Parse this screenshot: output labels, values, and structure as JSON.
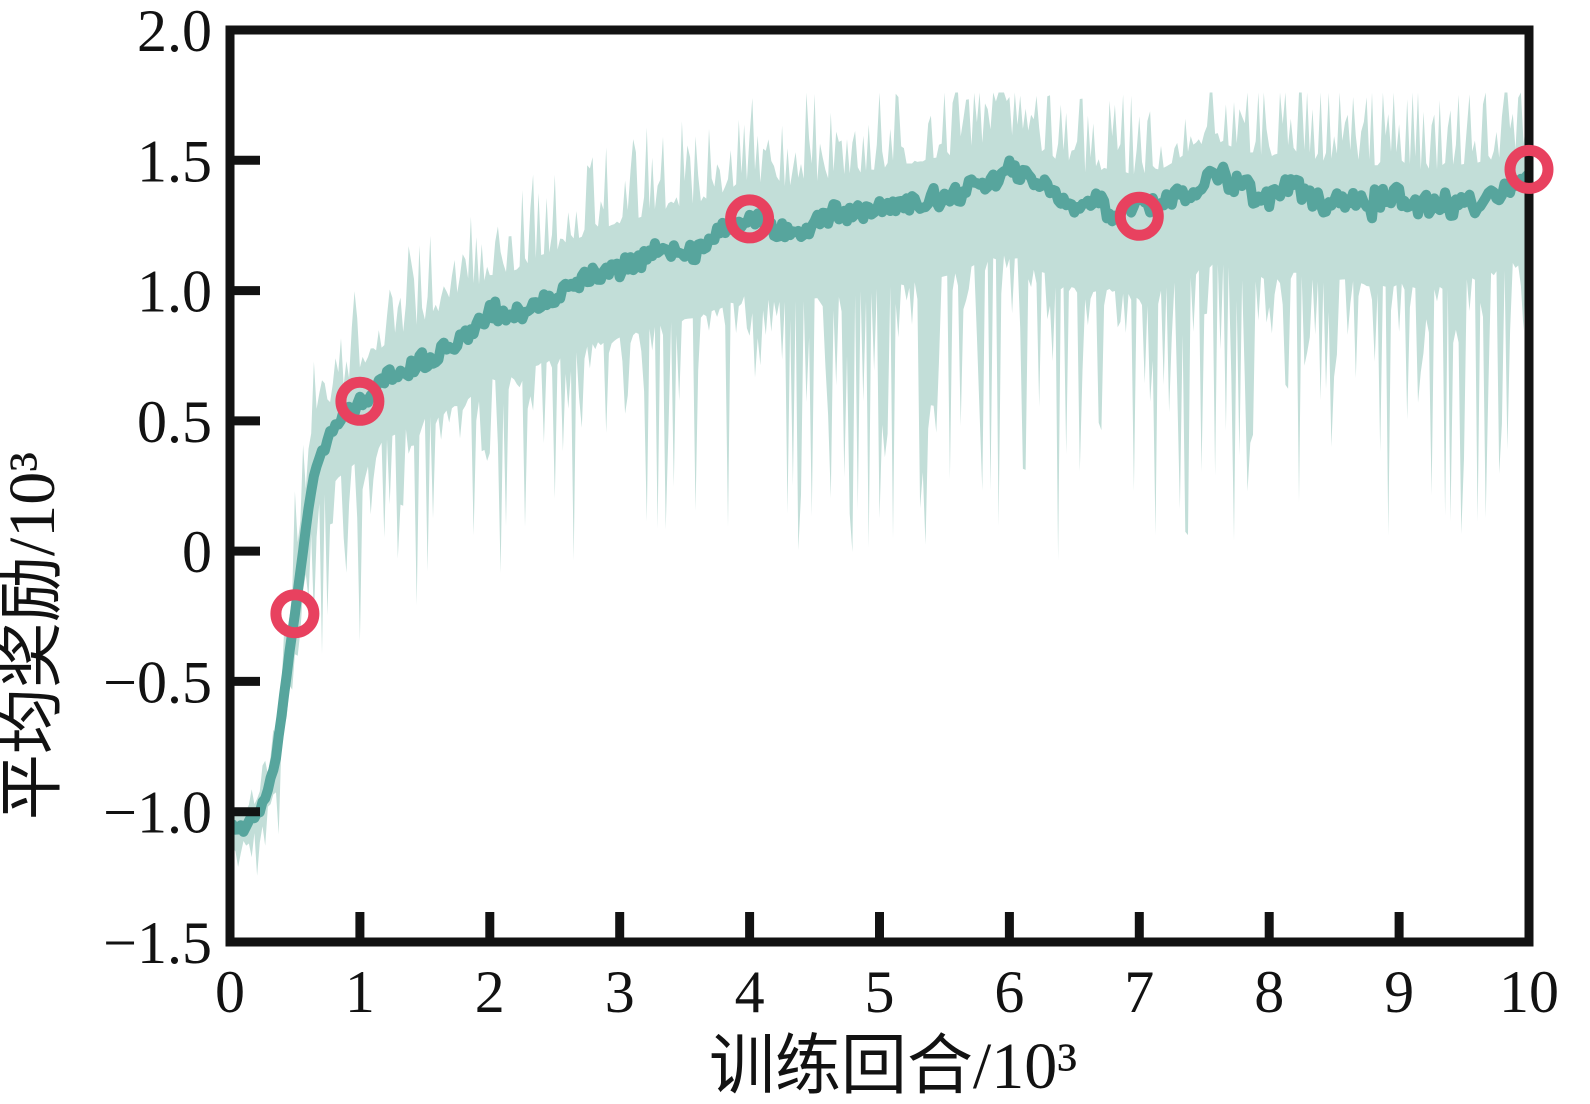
{
  "page": {
    "background": "#ffffff",
    "description_labels": {
      "x_axis": "训练回合/10³",
      "y_axis": "平均奖励/10³"
    }
  },
  "chart_data": {
    "type": "line",
    "title": "",
    "xlabel": "训练回合/10³",
    "ylabel": "平均奖励/10³",
    "xlim": [
      0,
      10
    ],
    "ylim": [
      -1.5,
      2.0
    ],
    "grid": false,
    "legend": "none",
    "axis_color": "#121212",
    "x_ticks": [
      {
        "value": 0,
        "label": "0"
      },
      {
        "value": 1,
        "label": "1"
      },
      {
        "value": 2,
        "label": "2"
      },
      {
        "value": 3,
        "label": "3"
      },
      {
        "value": 4,
        "label": "4"
      },
      {
        "value": 5,
        "label": "5"
      },
      {
        "value": 6,
        "label": "6"
      },
      {
        "value": 7,
        "label": "7"
      },
      {
        "value": 8,
        "label": "8"
      },
      {
        "value": 9,
        "label": "9"
      },
      {
        "value": 10,
        "label": "10"
      }
    ],
    "y_ticks": [
      {
        "value": 2.0,
        "label": "2.0"
      },
      {
        "value": 1.5,
        "label": "1.5"
      },
      {
        "value": 1.0,
        "label": "1.0"
      },
      {
        "value": 0.5,
        "label": "0.5"
      },
      {
        "value": 0,
        "label": "0"
      },
      {
        "value": -0.5,
        "label": "−0.5"
      },
      {
        "value": -1.0,
        "label": "−1.0"
      },
      {
        "value": -1.5,
        "label": "−1.5"
      }
    ],
    "series": [
      {
        "name": "mean-reward",
        "style": "line",
        "color": "#57a59d",
        "line_width": 10,
        "anchors": [
          [
            0,
            -1.08
          ],
          [
            0.1,
            -1.06
          ],
          [
            0.2,
            -1.02
          ],
          [
            0.3,
            -0.9
          ],
          [
            0.35,
            -0.8
          ],
          [
            0.4,
            -0.62
          ],
          [
            0.45,
            -0.42
          ],
          [
            0.5,
            -0.24
          ],
          [
            0.55,
            -0.05
          ],
          [
            0.6,
            0.16
          ],
          [
            0.65,
            0.3
          ],
          [
            0.7,
            0.38
          ],
          [
            0.8,
            0.46
          ],
          [
            0.9,
            0.52
          ],
          [
            1,
            0.57
          ],
          [
            1.2,
            0.65
          ],
          [
            1.4,
            0.7
          ],
          [
            1.6,
            0.76
          ],
          [
            1.8,
            0.8
          ],
          [
            2,
            0.9
          ],
          [
            2.2,
            0.92
          ],
          [
            2.4,
            0.98
          ],
          [
            2.6,
            1.01
          ],
          [
            2.8,
            1.07
          ],
          [
            3,
            1.1
          ],
          [
            3.2,
            1.13
          ],
          [
            3.4,
            1.16
          ],
          [
            3.6,
            1.18
          ],
          [
            3.8,
            1.22
          ],
          [
            4,
            1.27
          ],
          [
            4.2,
            1.24
          ],
          [
            4.4,
            1.25
          ],
          [
            4.6,
            1.27
          ],
          [
            4.8,
            1.29
          ],
          [
            5,
            1.31
          ],
          [
            5.2,
            1.33
          ],
          [
            5.4,
            1.35
          ],
          [
            5.6,
            1.38
          ],
          [
            5.8,
            1.43
          ],
          [
            6,
            1.46
          ],
          [
            6.2,
            1.41
          ],
          [
            6.4,
            1.35
          ],
          [
            6.6,
            1.31
          ],
          [
            6.8,
            1.33
          ],
          [
            7,
            1.29
          ],
          [
            7.2,
            1.33
          ],
          [
            7.4,
            1.39
          ],
          [
            7.6,
            1.43
          ],
          [
            7.8,
            1.39
          ],
          [
            8,
            1.37
          ],
          [
            8.2,
            1.39
          ],
          [
            8.4,
            1.35
          ],
          [
            8.6,
            1.37
          ],
          [
            8.8,
            1.33
          ],
          [
            9,
            1.35
          ],
          [
            9.2,
            1.31
          ],
          [
            9.4,
            1.33
          ],
          [
            9.6,
            1.35
          ],
          [
            9.8,
            1.37
          ],
          [
            10,
            1.44
          ]
        ]
      },
      {
        "name": "reward-range-band",
        "style": "band",
        "color": "#c2ded8",
        "lower_offset_anchors": [
          [
            0,
            -0.12
          ],
          [
            0.2,
            -0.14
          ],
          [
            0.35,
            -0.2
          ],
          [
            0.5,
            -0.35
          ],
          [
            0.7,
            -0.45
          ],
          [
            1,
            -0.55
          ],
          [
            1.5,
            -0.55
          ],
          [
            2,
            -0.6
          ],
          [
            2.5,
            -0.65
          ],
          [
            3,
            -0.7
          ],
          [
            4,
            -0.7
          ],
          [
            5,
            -0.75
          ],
          [
            6,
            -0.8
          ],
          [
            7,
            -0.8
          ],
          [
            8,
            -0.8
          ],
          [
            9,
            -0.8
          ],
          [
            10,
            -0.7
          ]
        ],
        "upper_offset_anchors": [
          [
            0,
            0.12
          ],
          [
            0.3,
            0.12
          ],
          [
            0.5,
            0.35
          ],
          [
            0.7,
            0.3
          ],
          [
            1,
            0.3
          ],
          [
            1.5,
            0.35
          ],
          [
            2,
            0.35
          ],
          [
            3,
            0.35
          ],
          [
            4,
            0.35
          ],
          [
            5,
            0.35
          ],
          [
            6,
            0.3
          ],
          [
            7,
            0.32
          ],
          [
            8,
            0.32
          ],
          [
            9,
            0.33
          ],
          [
            10,
            0.3
          ]
        ]
      },
      {
        "name": "checkpoint-markers",
        "style": "scatter-open-circle",
        "color": "#e8415f",
        "marker_radius": 19,
        "marker_ring_width": 11,
        "points": [
          [
            0.5,
            -0.24
          ],
          [
            1.0,
            0.575
          ],
          [
            4.0,
            1.275
          ],
          [
            7.0,
            1.285
          ],
          [
            10.0,
            1.465
          ]
        ]
      }
    ],
    "render_hints": {
      "samples": 480,
      "seed": 11,
      "mean_jitter": 0.045,
      "mean_wobble": 0.03,
      "coarse_every": 9,
      "lower_base": 0.4,
      "lower_gain": 1.35,
      "lower_pow": 3.5,
      "upper_base": 0.45,
      "upper_gain": 1.05,
      "upper_pow": 2.5,
      "upper_clamp": 1.76,
      "lower_clamp": -1.45
    }
  }
}
